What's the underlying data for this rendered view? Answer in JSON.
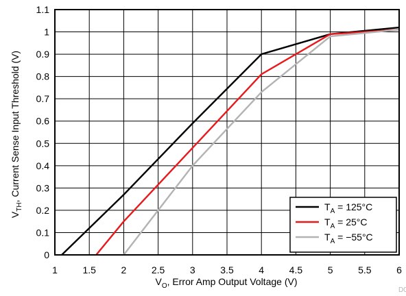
{
  "chart_data": {
    "type": "line",
    "title": "",
    "xlabel": {
      "main": "V",
      "sub": "O",
      "rest": ", Error Amp Output Voltage (V)"
    },
    "ylabel": {
      "main": "V",
      "sub": "TH",
      "rest": ", Current Sense Input Threshold (V)"
    },
    "xlim": [
      1,
      6
    ],
    "ylim": [
      0,
      1.1
    ],
    "xticks": [
      1,
      1.5,
      2,
      2.5,
      3,
      3.5,
      4,
      4.5,
      5,
      5.5,
      6
    ],
    "xtick_labels": [
      "1",
      "1.5",
      "2",
      "2.5",
      "3",
      "3.5",
      "4",
      "4.5",
      "5",
      "5.5",
      "6"
    ],
    "yticks": [
      0,
      0.1,
      0.2,
      0.3,
      0.4,
      0.5,
      0.6,
      0.7,
      0.8,
      0.9,
      1,
      1.1
    ],
    "ytick_labels": [
      "0",
      "0.1",
      "0.2",
      "0.3",
      "0.4",
      "0.5",
      "0.6",
      "0.7",
      "0.8",
      "0.9",
      "1",
      "1.1"
    ],
    "grid": true,
    "legend_position": "bottom-right",
    "series": [
      {
        "name": {
          "main": "T",
          "sub": "A",
          "rest": " = 125°C"
        },
        "color": "#000000",
        "x": [
          1.1,
          2.0,
          3.0,
          4.0,
          5.0,
          6.0
        ],
        "y": [
          0.0,
          0.27,
          0.59,
          0.9,
          0.99,
          1.02
        ]
      },
      {
        "name": {
          "main": "T",
          "sub": "A",
          "rest": " = 25°C"
        },
        "color": "#e8191c",
        "x": [
          1.6,
          2.0,
          3.0,
          4.0,
          5.0,
          6.0
        ],
        "y": [
          0.0,
          0.15,
          0.48,
          0.81,
          0.99,
          1.01
        ]
      },
      {
        "name": {
          "main": "T",
          "sub": "A",
          "rest": " = −55°C"
        },
        "color": "#b3b3b3",
        "x": [
          2.0,
          3.0,
          4.0,
          5.0,
          6.0
        ],
        "y": [
          0.0,
          0.4,
          0.73,
          0.98,
          1.01
        ]
      }
    ],
    "watermark": "D0"
  }
}
